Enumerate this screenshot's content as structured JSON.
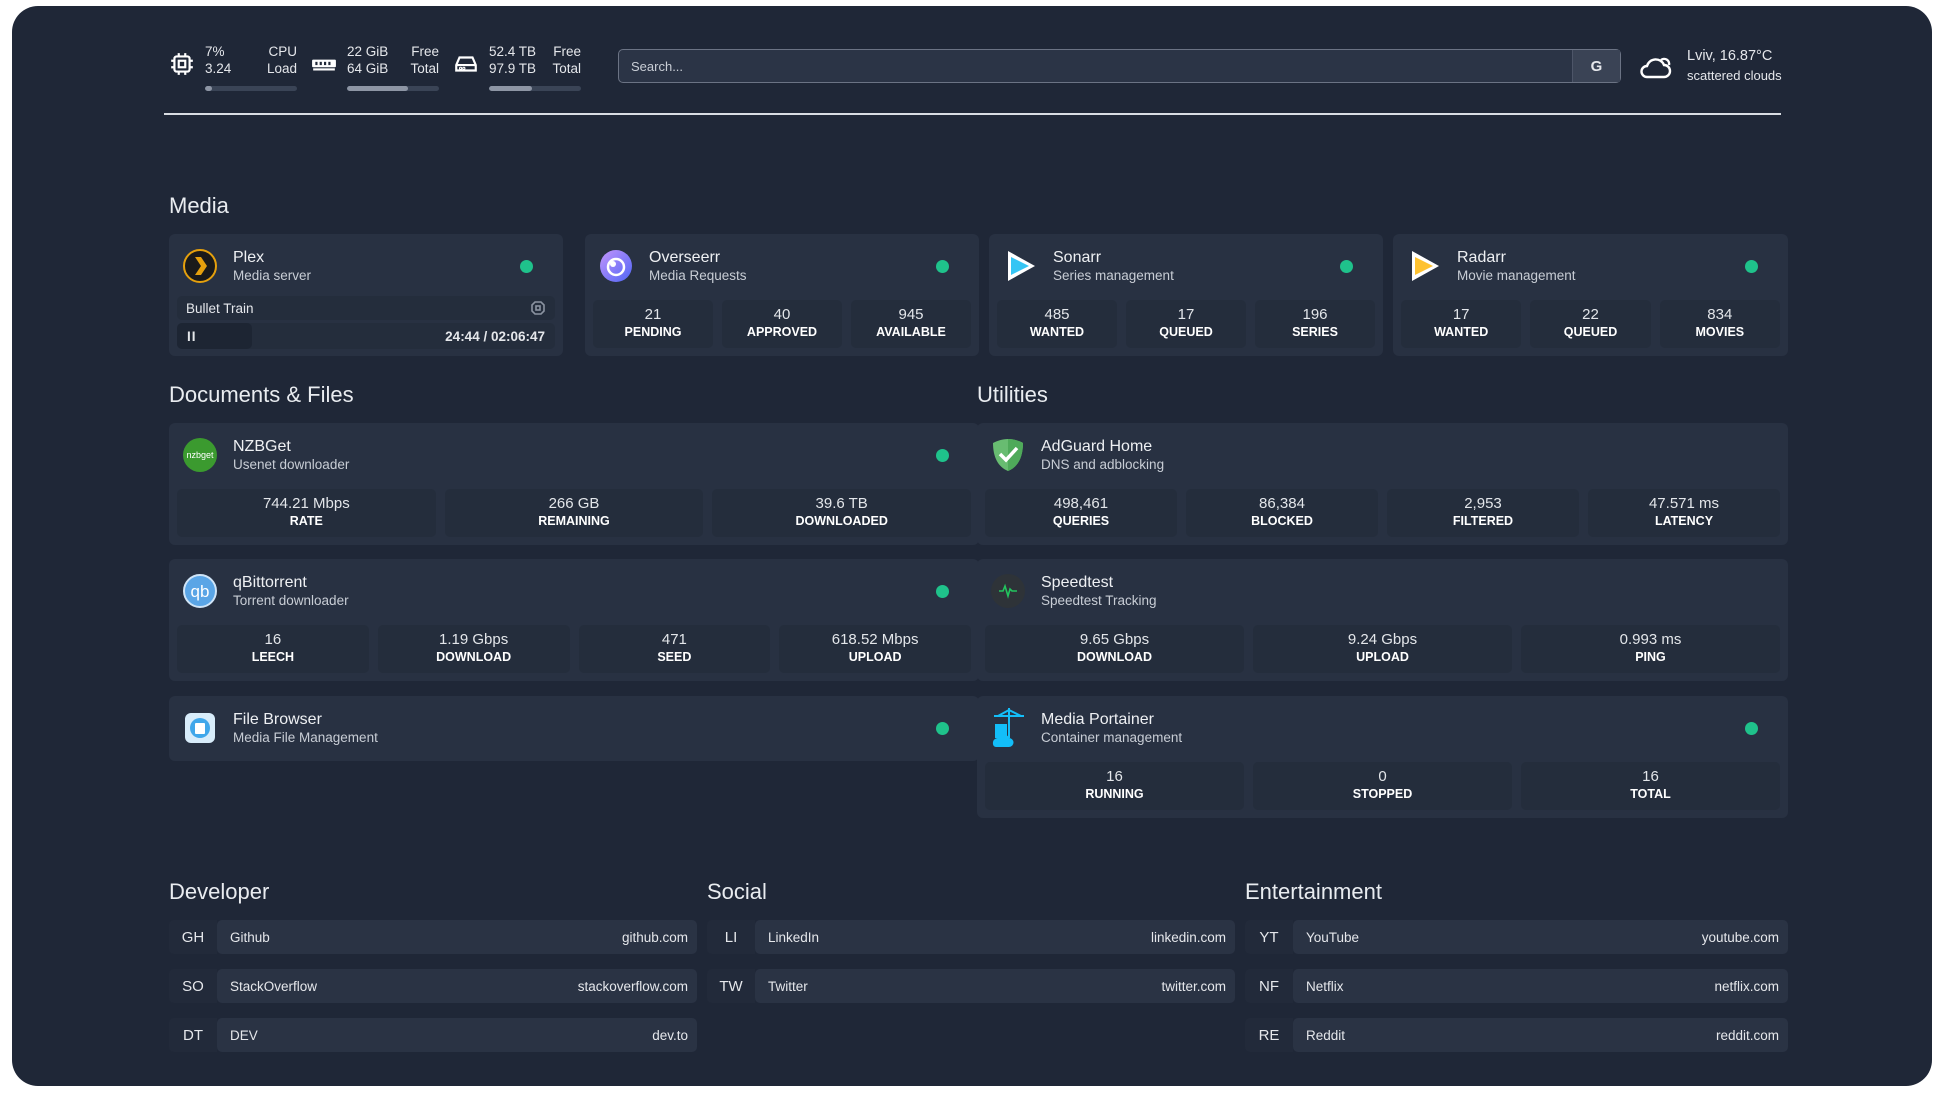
{
  "topbar": {
    "cpu": {
      "icon": "cpu-icon",
      "usage": "7%",
      "load": "3.24",
      "label1": "CPU",
      "label2": "Load",
      "percent": 7
    },
    "memory": {
      "icon": "memory-icon",
      "free": "22 GiB",
      "total": "64 GiB",
      "label1": "Free",
      "label2": "Total",
      "percent": 66
    },
    "disk": {
      "icon": "disk-icon",
      "free": "52.4 TB",
      "total": "97.9 TB",
      "label1": "Free",
      "label2": "Total",
      "percent": 47
    },
    "search": {
      "placeholder": "Search...",
      "provider": "G"
    },
    "weather": {
      "icon": "cloud-icon",
      "location_temp": "Lviv, 16.87°C",
      "condition": "scattered clouds"
    }
  },
  "colors": {
    "background": "#1f2737",
    "card": "#283142",
    "status_online": "#1fc28b"
  },
  "sections": {
    "media": "Media",
    "documents": "Documents & Files",
    "utilities": "Utilities",
    "developer": "Developer",
    "social": "Social",
    "entertainment": "Entertainment"
  },
  "services": {
    "plex": {
      "name": "Plex",
      "desc": "Media server",
      "icon": "plex-icon",
      "now_playing": {
        "title": "Bullet Train",
        "state": "II",
        "time": "24:44 / 02:06:47"
      }
    },
    "overseerr": {
      "name": "Overseerr",
      "desc": "Media Requests",
      "icon": "overseerr-icon",
      "stats": [
        {
          "v": "21",
          "l": "PENDING"
        },
        {
          "v": "40",
          "l": "APPROVED"
        },
        {
          "v": "945",
          "l": "AVAILABLE"
        }
      ]
    },
    "sonarr": {
      "name": "Sonarr",
      "desc": "Series management",
      "icon": "sonarr-icon",
      "stats": [
        {
          "v": "485",
          "l": "WANTED"
        },
        {
          "v": "17",
          "l": "QUEUED"
        },
        {
          "v": "196",
          "l": "SERIES"
        }
      ]
    },
    "radarr": {
      "name": "Radarr",
      "desc": "Movie management",
      "icon": "radarr-icon",
      "stats": [
        {
          "v": "17",
          "l": "WANTED"
        },
        {
          "v": "22",
          "l": "QUEUED"
        },
        {
          "v": "834",
          "l": "MOVIES"
        }
      ]
    },
    "nzbget": {
      "name": "NZBGet",
      "desc": "Usenet downloader",
      "icon": "nzbget-icon",
      "icon_text": "nzbget",
      "stats": [
        {
          "v": "744.21 Mbps",
          "l": "RATE"
        },
        {
          "v": "266 GB",
          "l": "REMAINING"
        },
        {
          "v": "39.6 TB",
          "l": "DOWNLOADED"
        }
      ]
    },
    "qbittorrent": {
      "name": "qBittorrent",
      "desc": "Torrent downloader",
      "icon": "qbittorrent-icon",
      "icon_text": "qb",
      "stats": [
        {
          "v": "16",
          "l": "LEECH"
        },
        {
          "v": "1.19 Gbps",
          "l": "DOWNLOAD"
        },
        {
          "v": "471",
          "l": "SEED"
        },
        {
          "v": "618.52 Mbps",
          "l": "UPLOAD"
        }
      ]
    },
    "filebrowser": {
      "name": "File Browser",
      "desc": "Media File Management",
      "icon": "file-browser-icon"
    },
    "adguard": {
      "name": "AdGuard Home",
      "desc": "DNS and adblocking",
      "icon": "adguard-icon",
      "stats": [
        {
          "v": "498,461",
          "l": "QUERIES"
        },
        {
          "v": "86,384",
          "l": "BLOCKED"
        },
        {
          "v": "2,953",
          "l": "FILTERED"
        },
        {
          "v": "47.571 ms",
          "l": "LATENCY"
        }
      ]
    },
    "speedtest": {
      "name": "Speedtest",
      "desc": "Speedtest Tracking",
      "icon": "speedtest-icon",
      "stats": [
        {
          "v": "9.65 Gbps",
          "l": "DOWNLOAD"
        },
        {
          "v": "9.24 Gbps",
          "l": "UPLOAD"
        },
        {
          "v": "0.993 ms",
          "l": "PING"
        }
      ]
    },
    "portainer": {
      "name": "Media Portainer",
      "desc": "Container management",
      "icon": "portainer-icon",
      "stats": [
        {
          "v": "16",
          "l": "RUNNING"
        },
        {
          "v": "0",
          "l": "STOPPED"
        },
        {
          "v": "16",
          "l": "TOTAL"
        }
      ]
    }
  },
  "bookmarks": {
    "developer": [
      {
        "abbr": "GH",
        "name": "Github",
        "url": "github.com"
      },
      {
        "abbr": "SO",
        "name": "StackOverflow",
        "url": "stackoverflow.com"
      },
      {
        "abbr": "DT",
        "name": "DEV",
        "url": "dev.to"
      }
    ],
    "social": [
      {
        "abbr": "LI",
        "name": "LinkedIn",
        "url": "linkedin.com"
      },
      {
        "abbr": "TW",
        "name": "Twitter",
        "url": "twitter.com"
      }
    ],
    "entertainment": [
      {
        "abbr": "YT",
        "name": "YouTube",
        "url": "youtube.com"
      },
      {
        "abbr": "NF",
        "name": "Netflix",
        "url": "netflix.com"
      },
      {
        "abbr": "RE",
        "name": "Reddit",
        "url": "reddit.com"
      }
    ]
  }
}
